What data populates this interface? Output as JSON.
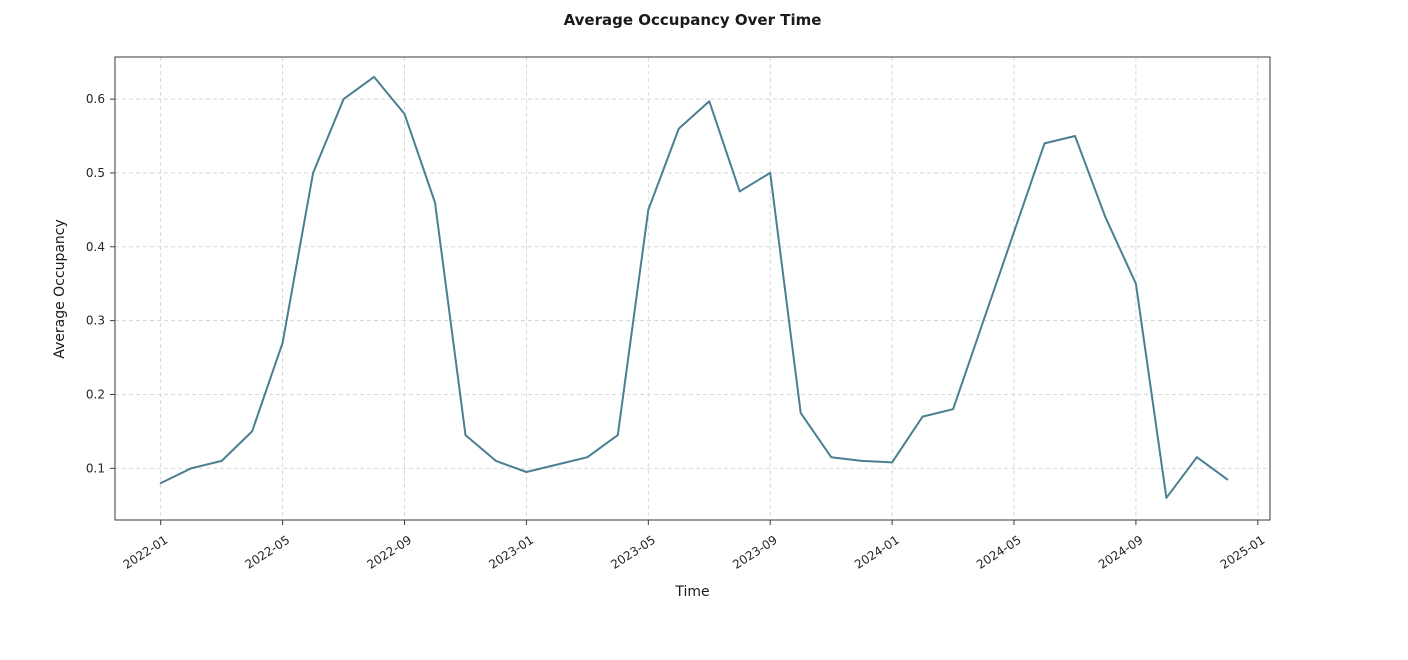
{
  "chart_data": {
    "type": "line",
    "title": "Average Occupancy Over Time",
    "xlabel": "Time",
    "ylabel": "Average Occupancy",
    "x": [
      "2022-01",
      "2022-02",
      "2022-03",
      "2022-04",
      "2022-05",
      "2022-06",
      "2022-07",
      "2022-08",
      "2022-09",
      "2022-10",
      "2022-11",
      "2022-12",
      "2023-01",
      "2023-02",
      "2023-03",
      "2023-04",
      "2023-05",
      "2023-06",
      "2023-07",
      "2023-08",
      "2023-09",
      "2023-10",
      "2023-11",
      "2023-12",
      "2024-01",
      "2024-02",
      "2024-03",
      "2024-04",
      "2024-05",
      "2024-06",
      "2024-07",
      "2024-08",
      "2024-09",
      "2024-10",
      "2024-11",
      "2024-12"
    ],
    "series": [
      {
        "name": "Average Occupancy",
        "values": [
          0.08,
          0.1,
          0.11,
          0.15,
          0.27,
          0.5,
          0.6,
          0.63,
          0.58,
          0.46,
          0.145,
          0.11,
          0.095,
          0.105,
          0.115,
          0.145,
          0.45,
          0.56,
          0.597,
          0.475,
          0.5,
          0.175,
          0.115,
          0.11,
          0.108,
          0.17,
          0.18,
          0.3,
          0.42,
          0.54,
          0.55,
          0.44,
          0.35,
          0.06,
          0.115,
          0.085
        ]
      }
    ],
    "x_tick_labels": [
      "2022-01",
      "2022-05",
      "2022-09",
      "2023-01",
      "2023-05",
      "2023-09",
      "2024-01",
      "2024-05",
      "2024-09",
      "2025-01"
    ],
    "x_tick_positions": [
      0,
      4,
      8,
      12,
      16,
      20,
      24,
      28,
      32,
      36
    ],
    "y_tick_labels": [
      "0.1",
      "0.2",
      "0.3",
      "0.4",
      "0.5",
      "0.6"
    ],
    "y_tick_values": [
      0.1,
      0.2,
      0.3,
      0.4,
      0.5,
      0.6
    ],
    "ylim": [
      0.03,
      0.657
    ],
    "xlim_months": [
      -1.5,
      36.4
    ],
    "grid": "dashed",
    "legend": "none",
    "line_color": "#4a7f91",
    "grid_color": "#d4d4d4",
    "spine_color": "#3a3a3a",
    "tick_color": "#262626",
    "background": "#ffffff"
  }
}
